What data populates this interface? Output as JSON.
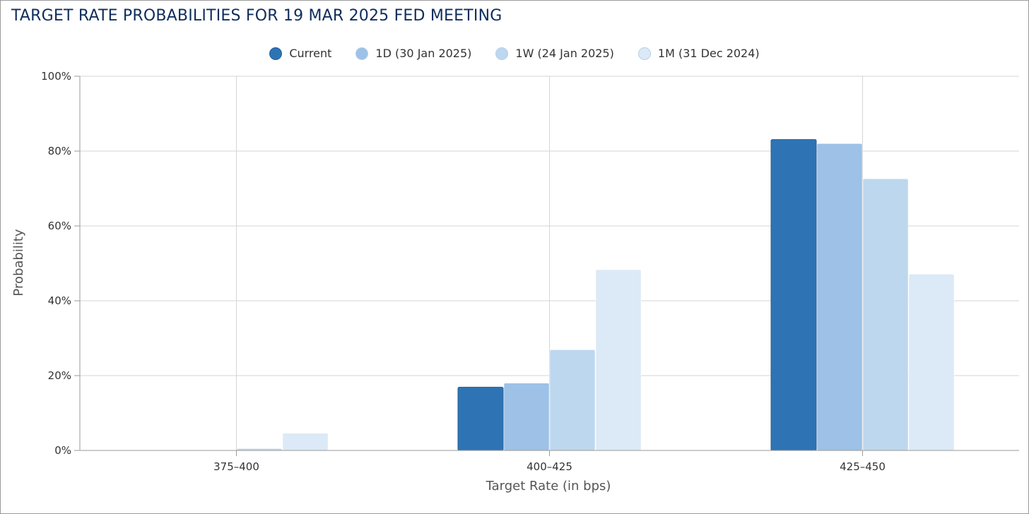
{
  "title": "TARGET RATE PROBABILITIES FOR 19 MAR 2025 FED MEETING",
  "chart_data": {
    "type": "bar",
    "title": "TARGET RATE PROBABILITIES FOR 19 MAR 2025 FED MEETING",
    "xlabel": "Target Rate (in bps)",
    "ylabel": "Probability",
    "categories": [
      "375-400",
      "400-425",
      "425-450"
    ],
    "ylim": [
      0,
      100
    ],
    "yticks": [
      "0%",
      "20%",
      "40%",
      "60%",
      "80%",
      "100%"
    ],
    "grid": true,
    "legend_position": "top-center",
    "series": [
      {
        "name": "Current",
        "color": "#2e74b5",
        "values": [
          0,
          16.9,
          83.1
        ]
      },
      {
        "name": "1D (30 Jan 2025)",
        "color": "#9dc1e7",
        "values": [
          0,
          18.0,
          82.0
        ]
      },
      {
        "name": "1W (24 Jan 2025)",
        "color": "#bdd7ee",
        "values": [
          0.5,
          26.9,
          72.6
        ]
      },
      {
        "name": "1M (31 Dec 2024)",
        "color": "#dce9f6",
        "values": [
          4.6,
          48.3,
          47.1
        ]
      }
    ]
  }
}
